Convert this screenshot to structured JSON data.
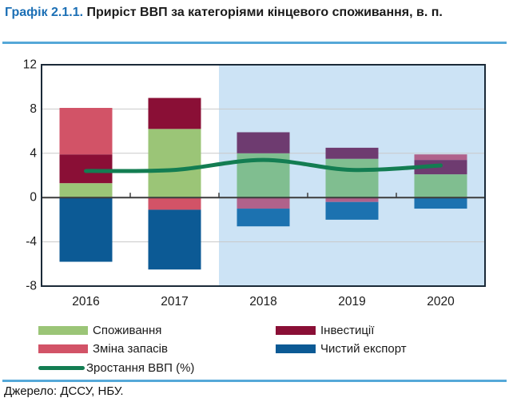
{
  "header": {
    "label": "Графік 2.1.1.",
    "title": "Приріст ВВП за категоріями кінцевого споживання, в. п."
  },
  "source": "Джерело: ДССУ, НБУ.",
  "colors": {
    "accent_blue": "#1B6FB5",
    "rule_blue": "#55A8D8",
    "forecast_background": "#CCE3F5",
    "plot_border": "#1B2A38",
    "zero_line": "#3C3C3C",
    "gridline": "#C9C9C9",
    "text": "#1A1A1A"
  },
  "chart_data": {
    "type": "bar",
    "stacked": true,
    "title": "Приріст ВВП за категоріями кінцевого споживання, в. п.",
    "categories": [
      "2016",
      "2017",
      "2018",
      "2019",
      "2020"
    ],
    "series": [
      {
        "name": "Споживання",
        "type": "bar",
        "color": "#9BC577",
        "forecast_color": "#80BE90",
        "values": [
          1.3,
          6.2,
          4.0,
          3.5,
          2.1
        ]
      },
      {
        "name": "Інвестиції",
        "type": "bar",
        "color": "#8A0F36",
        "forecast_color": "#6E3B70",
        "values": [
          2.6,
          2.8,
          1.9,
          1.0,
          1.3
        ]
      },
      {
        "name": "Зміна запасів",
        "type": "bar",
        "color": "#D25367",
        "forecast_color": "#B0628B",
        "values": [
          4.2,
          -1.1,
          -1.0,
          -0.4,
          0.5
        ]
      },
      {
        "name": "Чистий експорт",
        "type": "bar",
        "color": "#0C5A95",
        "forecast_color": "#1C72B0",
        "values": [
          -5.8,
          -5.4,
          -1.6,
          -1.6,
          -1.0
        ]
      },
      {
        "name": "Зростання ВВП (%)",
        "type": "line",
        "color": "#137D52",
        "values": [
          2.4,
          2.5,
          3.4,
          2.5,
          2.9
        ]
      }
    ],
    "ylim": [
      -8,
      12
    ],
    "yticks": [
      12,
      8,
      4,
      0,
      -4,
      -8
    ],
    "forecast_from_index": 2,
    "grid": true,
    "legend_position": "bottom"
  }
}
